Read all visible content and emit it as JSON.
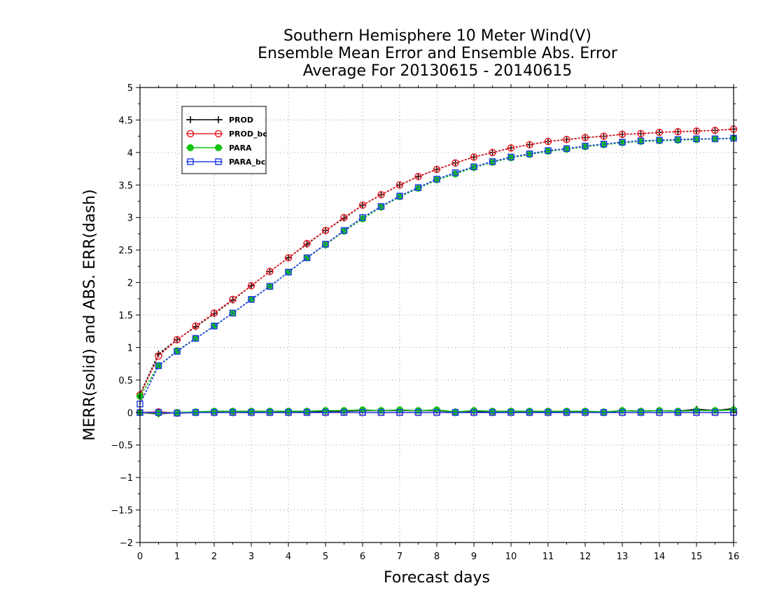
{
  "chart_data": {
    "type": "line",
    "title_lines": [
      "Southern Hemisphere 10 Meter Wind(V)",
      "Ensemble Mean Error and Ensemble Abs. Error",
      "Average For 20130615 - 20140615"
    ],
    "xlabel": "Forecast days",
    "ylabel": "MERR(solid) and ABS. ERR(dash)",
    "xlim": [
      0,
      16
    ],
    "ylim": [
      -2,
      5
    ],
    "x_ticks": [
      "0",
      "1",
      "2",
      "3",
      "4",
      "5",
      "6",
      "7",
      "8",
      "9",
      "10",
      "11",
      "12",
      "13",
      "14",
      "15",
      "16"
    ],
    "y_ticks": [
      "−2",
      "−1.5",
      "−1",
      "−0.5",
      "0",
      "0.5",
      "1",
      "1.5",
      "2",
      "2.5",
      "3",
      "3.5",
      "4",
      "4.5",
      "5"
    ],
    "grid": true,
    "legend_position": "top-left",
    "x": [
      0,
      0.5,
      1,
      1.5,
      2,
      2.5,
      3,
      3.5,
      4,
      4.5,
      5,
      5.5,
      6,
      6.5,
      7,
      7.5,
      8,
      8.5,
      9,
      9.5,
      10,
      10.5,
      11,
      11.5,
      12,
      12.5,
      13,
      13.5,
      14,
      14.5,
      15,
      15.5,
      16
    ],
    "series": [
      {
        "name": "PROD",
        "color": "#000000",
        "marker": "plus",
        "merr": [
          0,
          -0.02,
          0,
          0,
          0.01,
          0,
          0.01,
          0,
          0.01,
          0.01,
          0.02,
          0.02,
          0.03,
          0.03,
          0.03,
          0.03,
          0.03,
          0.01,
          0.02,
          0.01,
          0.02,
          0.01,
          0.01,
          0.01,
          0.01,
          0,
          0.03,
          0.02,
          0.03,
          0.02,
          0.05,
          0.03,
          0.06
        ],
        "abserr": [
          0.28,
          0.9,
          1.12,
          1.32,
          1.52,
          1.73,
          1.95,
          2.17,
          2.38,
          2.59,
          2.8,
          2.99,
          3.19,
          3.35,
          3.5,
          3.63,
          3.74,
          3.84,
          3.93,
          4,
          4.07,
          4.12,
          4.17,
          4.2,
          4.23,
          4.25,
          4.28,
          4.29,
          4.31,
          4.32,
          4.33,
          4.34,
          4.36
        ]
      },
      {
        "name": "PROD_bc",
        "color": "#e8212b",
        "marker": "circle",
        "merr": [
          0,
          0.01,
          -0.01,
          0,
          0,
          0,
          0,
          0,
          0,
          0,
          0,
          0,
          0,
          0,
          0,
          0,
          0,
          0,
          0,
          0,
          0,
          0,
          0,
          0,
          0,
          0,
          0,
          0,
          0,
          0,
          0,
          0,
          0
        ],
        "abserr": [
          0.27,
          0.87,
          1.12,
          1.33,
          1.53,
          1.74,
          1.95,
          2.17,
          2.38,
          2.6,
          2.8,
          3,
          3.19,
          3.35,
          3.5,
          3.63,
          3.74,
          3.84,
          3.93,
          4,
          4.07,
          4.12,
          4.17,
          4.2,
          4.23,
          4.25,
          4.28,
          4.29,
          4.31,
          4.32,
          4.33,
          4.34,
          4.36
        ]
      },
      {
        "name": "PARA",
        "color": "#11c411",
        "marker": "filled-circle",
        "merr": [
          0,
          -0.01,
          0,
          0.01,
          0.02,
          0.02,
          0.02,
          0.02,
          0.02,
          0.02,
          0.03,
          0.03,
          0.04,
          0.03,
          0.04,
          0.03,
          0.04,
          0.01,
          0.03,
          0.02,
          0.02,
          0.02,
          0.02,
          0.02,
          0.02,
          0.01,
          0.03,
          0.02,
          0.03,
          0.02,
          0.03,
          0.03,
          0.04
        ],
        "abserr": [
          0.25,
          0.72,
          0.95,
          1.14,
          1.33,
          1.53,
          1.74,
          1.94,
          2.16,
          2.38,
          2.58,
          2.79,
          2.98,
          3.16,
          3.32,
          3.45,
          3.58,
          3.67,
          3.77,
          3.85,
          3.92,
          3.97,
          4.02,
          4.05,
          4.09,
          4.12,
          4.15,
          4.17,
          4.18,
          4.19,
          4.2,
          4.21,
          4.22
        ]
      },
      {
        "name": "PARA_bc",
        "color": "#2540e8",
        "marker": "square",
        "merr": [
          0,
          0,
          -0.01,
          0,
          0,
          0,
          0,
          0,
          0,
          0,
          0,
          0,
          0,
          0,
          0,
          0,
          0,
          0,
          0,
          0,
          0,
          0,
          0,
          0,
          0,
          0,
          0,
          0,
          0,
          0,
          0,
          0,
          0
        ],
        "abserr": [
          0.13,
          0.72,
          0.94,
          1.14,
          1.33,
          1.53,
          1.74,
          1.94,
          2.16,
          2.38,
          2.59,
          2.8,
          3,
          3.17,
          3.33,
          3.46,
          3.59,
          3.69,
          3.78,
          3.86,
          3.93,
          3.98,
          4.03,
          4.06,
          4.1,
          4.13,
          4.16,
          4.18,
          4.19,
          4.2,
          4.21,
          4.21,
          4.22
        ]
      }
    ]
  }
}
